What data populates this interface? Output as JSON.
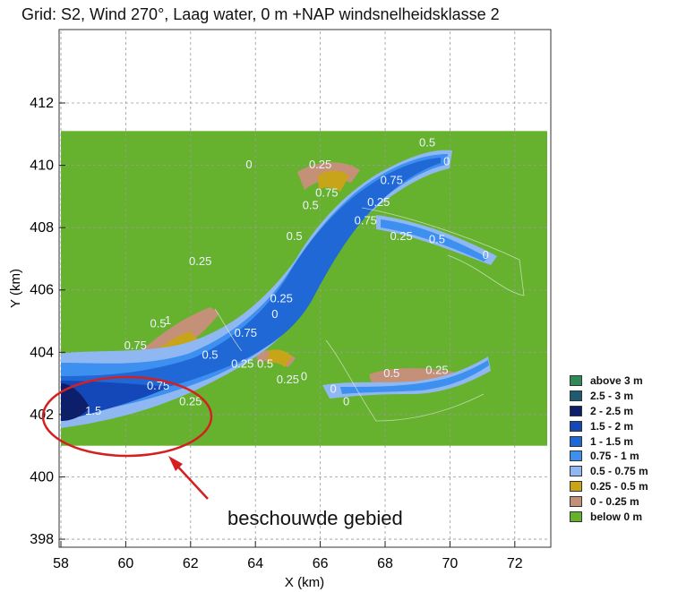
{
  "chart_data": {
    "type": "heatmap",
    "title": "Grid: S2, Wind 270°, Laag water, 0 m +NAP windsnelheidsklasse 2",
    "xlabel": "X (km)",
    "ylabel": "Y (km)",
    "xlim": [
      58,
      73
    ],
    "ylim": [
      397.8,
      414.3
    ],
    "xticks": [
      58,
      60,
      62,
      64,
      66,
      68,
      70,
      72
    ],
    "yticks": [
      398,
      400,
      402,
      404,
      406,
      408,
      410,
      412
    ],
    "grid": true,
    "legend_position": "right",
    "legend": [
      {
        "label": "above 3 m",
        "color": "#2e8b57"
      },
      {
        "label": "2.5 - 3 m",
        "color": "#1f5a73"
      },
      {
        "label": "2 - 2.5 m",
        "color": "#0d1f6b"
      },
      {
        "label": "1.5 - 2 m",
        "color": "#1448b8"
      },
      {
        "label": "1 - 1.5 m",
        "color": "#1f68d6"
      },
      {
        "label": "0.75 - 1 m",
        "color": "#3d8ff0"
      },
      {
        "label": "0.5 - 0.75 m",
        "color": "#8fb8f2"
      },
      {
        "label": "0.25 - 0.5 m",
        "color": "#c8a418"
      },
      {
        "label": "0 - 0.25 m",
        "color": "#c49078"
      },
      {
        "label": "below 0 m",
        "color": "#66b22e"
      }
    ],
    "grid_domain": {
      "x": [
        58,
        73
      ],
      "y": [
        401,
        411.1
      ]
    },
    "contour_labels": [
      {
        "x": 69.3,
        "y": 410.6,
        "text": "0.5"
      },
      {
        "x": 69.9,
        "y": 410.0,
        "text": "0"
      },
      {
        "x": 66.0,
        "y": 409.9,
        "text": "0.25"
      },
      {
        "x": 63.8,
        "y": 409.9,
        "text": "0"
      },
      {
        "x": 68.2,
        "y": 409.4,
        "text": "0.75"
      },
      {
        "x": 66.2,
        "y": 409.0,
        "text": "0.75"
      },
      {
        "x": 65.7,
        "y": 408.6,
        "text": "0.5"
      },
      {
        "x": 67.8,
        "y": 408.7,
        "text": "0.25"
      },
      {
        "x": 67.4,
        "y": 408.1,
        "text": "0.75"
      },
      {
        "x": 68.5,
        "y": 407.6,
        "text": "0.25"
      },
      {
        "x": 69.6,
        "y": 407.5,
        "text": "0.5"
      },
      {
        "x": 71.1,
        "y": 407.0,
        "text": "0"
      },
      {
        "x": 65.2,
        "y": 407.6,
        "text": "0.5"
      },
      {
        "x": 62.3,
        "y": 406.8,
        "text": "0.25"
      },
      {
        "x": 64.8,
        "y": 405.6,
        "text": "0.25"
      },
      {
        "x": 64.6,
        "y": 405.1,
        "text": "0"
      },
      {
        "x": 61.0,
        "y": 404.8,
        "text": "0.5"
      },
      {
        "x": 61.3,
        "y": 404.9,
        "text": "1"
      },
      {
        "x": 60.3,
        "y": 404.1,
        "text": "0.75"
      },
      {
        "x": 63.7,
        "y": 404.5,
        "text": "0.75"
      },
      {
        "x": 62.6,
        "y": 403.8,
        "text": "0.5"
      },
      {
        "x": 63.6,
        "y": 403.5,
        "text": "0.25"
      },
      {
        "x": 64.3,
        "y": 403.5,
        "text": "0.5"
      },
      {
        "x": 65.0,
        "y": 403.0,
        "text": "0.25"
      },
      {
        "x": 65.5,
        "y": 403.1,
        "text": "0"
      },
      {
        "x": 66.4,
        "y": 402.7,
        "text": "0"
      },
      {
        "x": 68.2,
        "y": 403.2,
        "text": "0.5"
      },
      {
        "x": 69.6,
        "y": 403.3,
        "text": "0.25"
      },
      {
        "x": 66.8,
        "y": 402.3,
        "text": "0"
      },
      {
        "x": 61.0,
        "y": 402.8,
        "text": "0.75"
      },
      {
        "x": 62.0,
        "y": 402.3,
        "text": "0.25"
      },
      {
        "x": 59.0,
        "y": 402.0,
        "text": "1.5"
      }
    ]
  },
  "annotation": {
    "label": "beschouwde gebied"
  }
}
